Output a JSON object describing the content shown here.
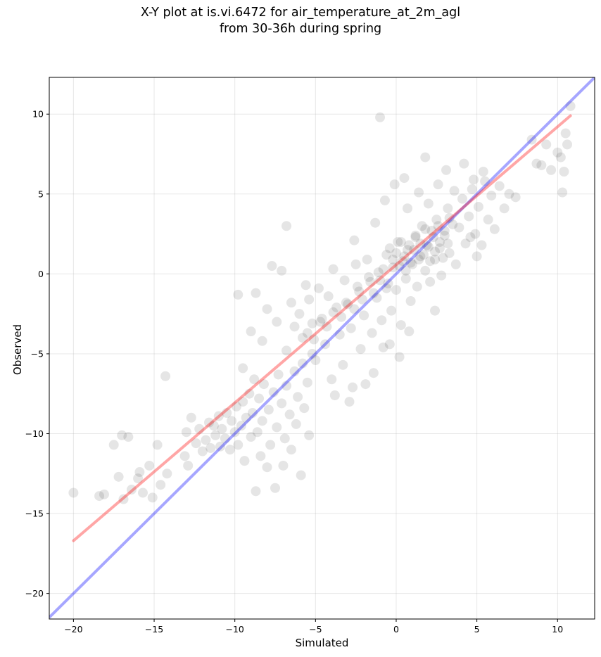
{
  "chart_data": {
    "type": "scatter",
    "title": "X-Y plot at is.vi.6472 for air_temperature_at_2m_agl",
    "subtitle": "from 30-36h during spring",
    "xlabel": "Simulated",
    "ylabel": "Observed",
    "xlim": [
      -21.5,
      12.3
    ],
    "ylim": [
      -21.6,
      12.3
    ],
    "x_ticks": [
      -20,
      -15,
      -10,
      -5,
      0,
      5,
      10
    ],
    "y_ticks": [
      -20,
      -15,
      -10,
      -5,
      0,
      5,
      10
    ],
    "x_tick_labels": [
      "−20",
      "−15",
      "−10",
      "−5",
      "0",
      "5",
      "10"
    ],
    "y_tick_labels": [
      "−20",
      "−15",
      "−10",
      "−5",
      "0",
      "5",
      "10"
    ],
    "grid": true,
    "point_color": "#000000",
    "point_alpha": 0.1,
    "reference_line": {
      "color": "#0000ff",
      "alpha": 0.35,
      "x": [
        -21.5,
        12.3
      ],
      "y": [
        -21.5,
        12.3
      ]
    },
    "fit_line": {
      "color": "#ff0000",
      "alpha": 0.35,
      "x": [
        -20.0,
        10.8
      ],
      "y": [
        -16.7,
        9.9
      ]
    },
    "points": [
      [
        -20.0,
        -13.7
      ],
      [
        -18.4,
        -13.9
      ],
      [
        -18.1,
        -13.8
      ],
      [
        -17.5,
        -10.7
      ],
      [
        -17.2,
        -12.7
      ],
      [
        -17.0,
        -10.1
      ],
      [
        -16.9,
        -14.1
      ],
      [
        -16.6,
        -10.2
      ],
      [
        -16.4,
        -13.5
      ],
      [
        -16.0,
        -12.8
      ],
      [
        -15.9,
        -12.4
      ],
      [
        -15.7,
        -13.7
      ],
      [
        -15.3,
        -12.0
      ],
      [
        -15.1,
        -14.0
      ],
      [
        -14.8,
        -10.7
      ],
      [
        -14.6,
        -13.2
      ],
      [
        -14.3,
        -6.4
      ],
      [
        -14.2,
        -12.5
      ],
      [
        -13.1,
        -11.4
      ],
      [
        -13.0,
        -9.9
      ],
      [
        -12.9,
        -12.0
      ],
      [
        -12.7,
        -9.0
      ],
      [
        -12.4,
        -10.6
      ],
      [
        -12.2,
        -9.7
      ],
      [
        -12.0,
        -11.1
      ],
      [
        -11.8,
        -10.4
      ],
      [
        -11.6,
        -9.3
      ],
      [
        -11.5,
        -10.9
      ],
      [
        -11.3,
        -9.5
      ],
      [
        -11.2,
        -10.1
      ],
      [
        -11.0,
        -8.9
      ],
      [
        -10.9,
        -10.8
      ],
      [
        -10.8,
        -9.7
      ],
      [
        -10.6,
        -10.3
      ],
      [
        -10.5,
        -8.7
      ],
      [
        -10.3,
        -11.0
      ],
      [
        -10.2,
        -9.2
      ],
      [
        -10.0,
        -9.9
      ],
      [
        -9.9,
        -8.3
      ],
      [
        -9.8,
        -10.7
      ],
      [
        -9.6,
        -9.5
      ],
      [
        -9.5,
        -8.0
      ],
      [
        -9.4,
        -11.7
      ],
      [
        -9.3,
        -9.0
      ],
      [
        -9.1,
        -7.5
      ],
      [
        -9.0,
        -10.2
      ],
      [
        -8.9,
        -8.7
      ],
      [
        -8.8,
        -6.6
      ],
      [
        -8.7,
        -13.6
      ],
      [
        -8.6,
        -9.9
      ],
      [
        -8.5,
        -7.8
      ],
      [
        -8.4,
        -11.4
      ],
      [
        -8.3,
        -9.2
      ],
      [
        -8.2,
        -6.9
      ],
      [
        -8.0,
        -12.1
      ],
      [
        -7.9,
        -8.5
      ],
      [
        -7.8,
        -10.7
      ],
      [
        -7.6,
        -7.4
      ],
      [
        -7.5,
        -13.4
      ],
      [
        -7.4,
        -9.6
      ],
      [
        -7.3,
        -6.3
      ],
      [
        -7.1,
        -8.1
      ],
      [
        -7.0,
        -12.0
      ],
      [
        -6.9,
        -10.3
      ],
      [
        -6.8,
        -7.0
      ],
      [
        -6.6,
        -8.8
      ],
      [
        -6.5,
        -11.0
      ],
      [
        -6.3,
        -6.1
      ],
      [
        -6.2,
        -9.4
      ],
      [
        -6.1,
        -7.7
      ],
      [
        -5.9,
        -12.6
      ],
      [
        -5.8,
        -5.6
      ],
      [
        -5.7,
        -8.4
      ],
      [
        -5.5,
        -6.8
      ],
      [
        -5.4,
        -10.1
      ],
      [
        -5.2,
        -5.0
      ],
      [
        -9.8,
        -1.3
      ],
      [
        -9.5,
        -5.9
      ],
      [
        -9.0,
        -3.6
      ],
      [
        -8.7,
        -1.2
      ],
      [
        -8.3,
        -4.2
      ],
      [
        -8.0,
        -2.2
      ],
      [
        -7.7,
        0.5
      ],
      [
        -7.4,
        -3.0
      ],
      [
        -7.1,
        0.2
      ],
      [
        -6.8,
        -4.8
      ],
      [
        -6.5,
        -1.8
      ],
      [
        -6.3,
        -3.3
      ],
      [
        -6.0,
        -2.5
      ],
      [
        -5.8,
        -4.0
      ],
      [
        -5.6,
        -0.7
      ],
      [
        -5.4,
        -1.6
      ],
      [
        -5.2,
        -3.1
      ],
      [
        -5.0,
        -5.4
      ],
      [
        -4.8,
        -0.9
      ],
      [
        -4.6,
        -2.8
      ],
      [
        -4.4,
        -4.4
      ],
      [
        -4.2,
        -1.4
      ],
      [
        -4.0,
        -6.6
      ],
      [
        -3.9,
        0.3
      ],
      [
        -3.7,
        -2.1
      ],
      [
        -3.5,
        -3.8
      ],
      [
        -3.3,
        -5.7
      ],
      [
        -3.2,
        -0.4
      ],
      [
        -3.0,
        -1.9
      ],
      [
        -2.8,
        -3.4
      ],
      [
        -2.7,
        -7.1
      ],
      [
        -2.5,
        0.6
      ],
      [
        -2.3,
        -1.1
      ],
      [
        -2.2,
        -4.7
      ],
      [
        -2.0,
        -2.6
      ],
      [
        -1.8,
        0.9
      ],
      [
        -1.7,
        -0.2
      ],
      [
        -1.5,
        -3.7
      ],
      [
        -1.4,
        -6.2
      ],
      [
        -1.2,
        -1.5
      ],
      [
        -1.1,
        0.1
      ],
      [
        -0.9,
        -2.9
      ],
      [
        -0.8,
        -4.6
      ],
      [
        -0.6,
        1.2
      ],
      [
        -0.5,
        -0.6
      ],
      [
        -0.3,
        -2.3
      ],
      [
        -0.2,
        0.4
      ],
      [
        0.0,
        -1.0
      ],
      [
        0.1,
        2.0
      ],
      [
        0.3,
        -3.2
      ],
      [
        0.4,
        0.8
      ],
      [
        0.6,
        -0.3
      ],
      [
        0.7,
        1.5
      ],
      [
        0.9,
        -1.7
      ],
      [
        1.0,
        0.6
      ],
      [
        1.2,
        2.3
      ],
      [
        1.3,
        -0.8
      ],
      [
        1.5,
        1.1
      ],
      [
        1.6,
        3.0
      ],
      [
        1.8,
        0.2
      ],
      [
        1.9,
        1.8
      ],
      [
        2.1,
        -0.5
      ],
      [
        2.2,
        2.7
      ],
      [
        2.4,
        0.9
      ],
      [
        2.5,
        3.4
      ],
      [
        2.7,
        1.6
      ],
      [
        2.8,
        -0.1
      ],
      [
        3.0,
        2.4
      ],
      [
        3.2,
        4.1
      ],
      [
        3.3,
        1.3
      ],
      [
        3.5,
        3.1
      ],
      [
        3.7,
        0.6
      ],
      [
        3.9,
        2.9
      ],
      [
        4.1,
        4.7
      ],
      [
        4.3,
        1.9
      ],
      [
        4.5,
        3.6
      ],
      [
        4.7,
        5.3
      ],
      [
        4.9,
        2.5
      ],
      [
        5.1,
        4.2
      ],
      [
        5.3,
        1.8
      ],
      [
        5.5,
        5.8
      ],
      [
        5.7,
        3.4
      ],
      [
        5.9,
        4.9
      ],
      [
        6.1,
        2.8
      ],
      [
        6.4,
        5.5
      ],
      [
        6.7,
        4.1
      ],
      [
        7.0,
        5.0
      ],
      [
        7.4,
        4.8
      ],
      [
        -3.8,
        -7.6
      ],
      [
        -2.9,
        -8.0
      ],
      [
        -1.9,
        -6.9
      ],
      [
        -0.4,
        -4.4
      ],
      [
        0.2,
        -5.2
      ],
      [
        0.8,
        -3.6
      ],
      [
        -2.6,
        2.1
      ],
      [
        -1.3,
        3.2
      ],
      [
        -0.7,
        4.6
      ],
      [
        -0.1,
        5.6
      ],
      [
        0.5,
        6.0
      ],
      [
        0.7,
        4.1
      ],
      [
        1.4,
        5.1
      ],
      [
        1.8,
        7.3
      ],
      [
        2.0,
        4.4
      ],
      [
        2.6,
        5.6
      ],
      [
        3.1,
        6.5
      ],
      [
        3.6,
        5.2
      ],
      [
        4.2,
        6.9
      ],
      [
        4.8,
        5.9
      ],
      [
        5.0,
        1.1
      ],
      [
        5.4,
        6.4
      ],
      [
        -6.8,
        3.0
      ],
      [
        -1.0,
        9.8
      ],
      [
        2.4,
        -2.3
      ],
      [
        4.6,
        2.3
      ],
      [
        8.4,
        8.4
      ],
      [
        8.7,
        6.9
      ],
      [
        9.0,
        6.8
      ],
      [
        9.3,
        8.1
      ],
      [
        9.6,
        6.5
      ],
      [
        10.0,
        7.6
      ],
      [
        10.2,
        7.3
      ],
      [
        10.3,
        5.1
      ],
      [
        10.4,
        6.4
      ],
      [
        10.5,
        8.8
      ],
      [
        10.6,
        8.1
      ],
      [
        10.8,
        10.5
      ],
      [
        -0.4,
        1.6
      ],
      [
        -0.2,
        0.9
      ],
      [
        0.0,
        1.3
      ],
      [
        0.2,
        0.5
      ],
      [
        0.3,
        2.0
      ],
      [
        0.5,
        1.1
      ],
      [
        0.6,
        0.2
      ],
      [
        0.8,
        1.8
      ],
      [
        0.9,
        0.7
      ],
      [
        1.1,
        1.5
      ],
      [
        1.2,
        2.4
      ],
      [
        1.4,
        0.9
      ],
      [
        1.5,
        1.9
      ],
      [
        1.7,
        1.2
      ],
      [
        1.8,
        2.8
      ],
      [
        2.0,
        1.7
      ],
      [
        2.1,
        0.8
      ],
      [
        2.3,
        2.3
      ],
      [
        2.4,
        1.4
      ],
      [
        2.6,
        3.0
      ],
      [
        2.7,
        2.0
      ],
      [
        2.9,
        1.0
      ],
      [
        3.0,
        2.7
      ],
      [
        3.2,
        1.9
      ],
      [
        3.3,
        3.5
      ],
      [
        -1.0,
        -0.4
      ],
      [
        -0.8,
        0.3
      ],
      [
        -0.6,
        -0.9
      ],
      [
        -1.4,
        -1.2
      ],
      [
        -1.6,
        -0.5
      ],
      [
        -2.1,
        -1.6
      ],
      [
        -2.4,
        -0.8
      ],
      [
        -2.6,
        -2.2
      ],
      [
        -3.1,
        -1.8
      ],
      [
        -3.4,
        -2.7
      ],
      [
        -3.9,
        -2.4
      ],
      [
        -4.3,
        -3.3
      ],
      [
        -4.7,
        -3.0
      ],
      [
        -5.1,
        -4.1
      ],
      [
        -5.5,
        -3.7
      ]
    ]
  }
}
